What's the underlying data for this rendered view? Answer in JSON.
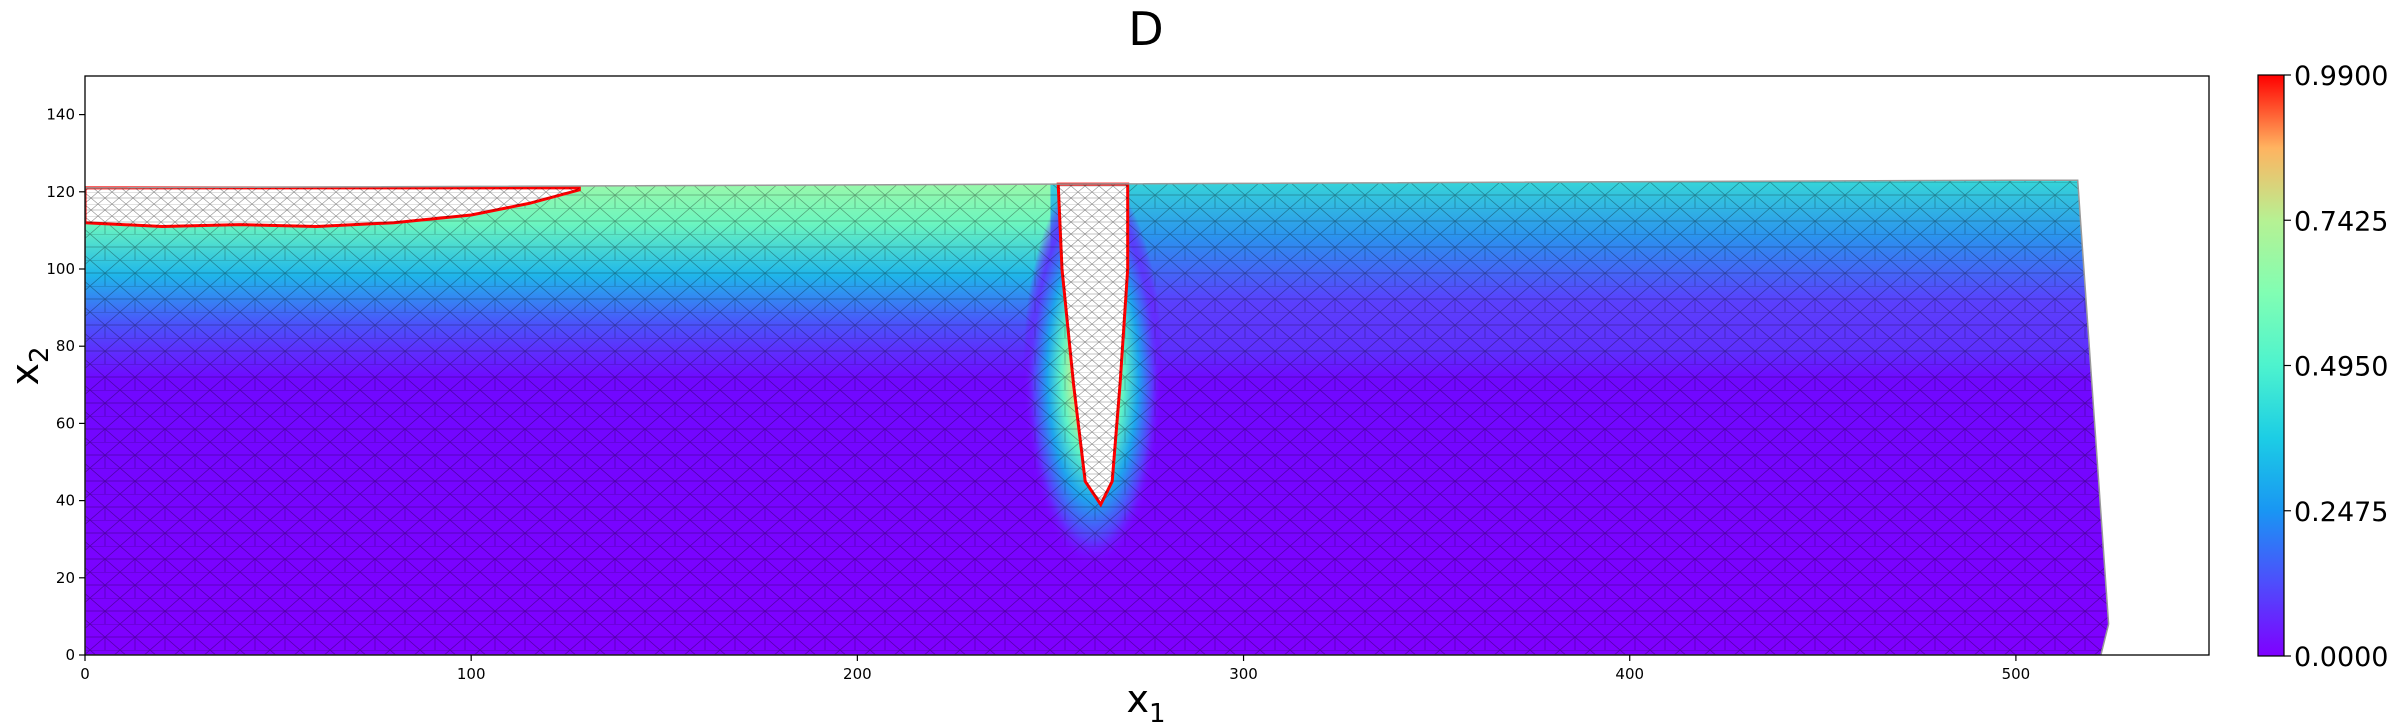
{
  "chart_data": {
    "type": "heatmap",
    "title": "D",
    "xlabel": "x",
    "xlabel_sub": "1",
    "ylabel": "x",
    "ylabel_sub": "2",
    "xlim": [
      0,
      550
    ],
    "ylim": [
      0,
      150
    ],
    "xticks": [
      0,
      100,
      200,
      300,
      400,
      500
    ],
    "yticks": [
      0,
      20,
      40,
      60,
      80,
      100,
      120,
      140
    ],
    "colormap": "rainbow",
    "clim": [
      0.0,
      0.99
    ],
    "colorbar_ticks": [
      "0.0000",
      "0.2475",
      "0.4950",
      "0.7425",
      "0.9900"
    ],
    "colorbar_tick_values": [
      0.0,
      0.2475,
      0.495,
      0.7425,
      0.99
    ],
    "colors": {
      "background": "#ffffff",
      "mesh": "#000000",
      "fracture_boundary": "#ff0000",
      "low": "#7f00ff",
      "high": "#ff0000"
    },
    "domain_outline": [
      [
        0,
        0
      ],
      [
        0,
        121
      ],
      [
        250,
        122
      ],
      [
        500,
        123
      ],
      [
        516,
        123
      ],
      [
        524,
        8
      ],
      [
        522,
        0
      ]
    ],
    "surface_damage_zone": {
      "x_range": [
        0,
        128
      ],
      "top": 121,
      "bottom_profile": [
        [
          0,
          112
        ],
        [
          20,
          111
        ],
        [
          40,
          111.5
        ],
        [
          60,
          111
        ],
        [
          80,
          112
        ],
        [
          100,
          114
        ],
        [
          115,
          117
        ],
        [
          128,
          120.5
        ]
      ]
    },
    "notch_crack": {
      "top": 122,
      "outline": [
        [
          252,
          122
        ],
        [
          253,
          100
        ],
        [
          256,
          70
        ],
        [
          259,
          45
        ],
        [
          263,
          39
        ],
        [
          266,
          45
        ],
        [
          268,
          70
        ],
        [
          270,
          100
        ],
        [
          270,
          122
        ]
      ]
    }
  }
}
